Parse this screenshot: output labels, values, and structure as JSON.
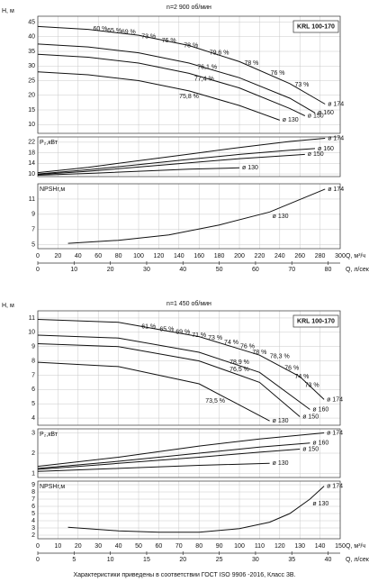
{
  "chart_data": [
    {
      "type": "pump-curves",
      "title": "n=2 900 об/мин",
      "model": "KRL 100-170",
      "xlabel": "Q, м³/ч",
      "xlim": [
        0,
        300
      ],
      "xticks": [
        0,
        20,
        40,
        60,
        80,
        100,
        120,
        140,
        160,
        180,
        200,
        220,
        240,
        260,
        280,
        300
      ],
      "x2label": "Q, л/сек",
      "x2lim": [
        0,
        83.333
      ],
      "x2ticks": [
        0,
        10,
        20,
        30,
        40,
        50,
        60,
        70,
        80
      ],
      "grid": true,
      "panels": [
        {
          "ylabel": "H, м",
          "ylim": [
            7,
            47
          ],
          "yticks": [
            10,
            15,
            20,
            25,
            30,
            35,
            40,
            45
          ],
          "series": [
            {
              "name": "ø 174",
              "color": "#111111",
              "x": [
                0,
                50,
                100,
                150,
                200,
                250,
                285
              ],
              "values": [
                43.5,
                42.5,
                40.5,
                37,
                31.5,
                24,
                17
              ]
            },
            {
              "name": "ø 160",
              "color": "#111111",
              "x": [
                0,
                50,
                100,
                150,
                200,
                250,
                275
              ],
              "values": [
                37.5,
                36.5,
                34.5,
                31,
                26,
                19,
                14
              ]
            },
            {
              "name": "ø 150",
              "color": "#111111",
              "x": [
                0,
                50,
                100,
                150,
                200,
                250,
                265
              ],
              "values": [
                34,
                33,
                31,
                27.5,
                22.5,
                15.5,
                13
              ]
            },
            {
              "name": "ø 130",
              "color": "#111111",
              "x": [
                0,
                50,
                100,
                150,
                200,
                240
              ],
              "values": [
                28,
                27,
                25,
                21.5,
                16.5,
                11.5
              ]
            }
          ],
          "annotations": [
            {
              "label": "60 %",
              "x": 62,
              "y": 42.6
            },
            {
              "label": "65 %",
              "x": 76,
              "y": 42.1
            },
            {
              "label": "69 %",
              "x": 90,
              "y": 41.5
            },
            {
              "label": "73 %",
              "x": 110,
              "y": 40
            },
            {
              "label": "76 %",
              "x": 130,
              "y": 38.6
            },
            {
              "label": "78 %",
              "x": 152,
              "y": 37
            },
            {
              "label": "79,6 %",
              "x": 180,
              "y": 34.5
            },
            {
              "label": "78 %",
              "x": 212,
              "y": 31
            },
            {
              "label": "76 %",
              "x": 238,
              "y": 27.5
            },
            {
              "label": "73 %",
              "x": 262,
              "y": 23.5
            },
            {
              "label": "76,1 %",
              "x": 168,
              "y": 29.5
            },
            {
              "label": "77,4 %",
              "x": 165,
              "y": 25.5
            },
            {
              "label": "75,8 %",
              "x": 150,
              "y": 19.5
            }
          ]
        },
        {
          "ylabel": "P₂,кВт",
          "ylim": [
            9,
            24
          ],
          "yticks": [
            10,
            14,
            18,
            22
          ],
          "series": [
            {
              "name": "ø 174",
              "color": "#111111",
              "x": [
                0,
                50,
                100,
                150,
                200,
                250,
                285
              ],
              "values": [
                10.5,
                12.5,
                15,
                17.5,
                20,
                22.3,
                23.5
              ]
            },
            {
              "name": "ø 160",
              "color": "#111111",
              "x": [
                0,
                50,
                100,
                150,
                200,
                250,
                275
              ],
              "values": [
                10,
                11.6,
                13.5,
                15.5,
                17.4,
                19,
                19.6
              ]
            },
            {
              "name": "ø 150",
              "color": "#111111",
              "x": [
                0,
                50,
                100,
                150,
                200,
                250,
                265
              ],
              "values": [
                9.8,
                11,
                12.6,
                14.2,
                15.8,
                17,
                17.4
              ]
            },
            {
              "name": "ø 130",
              "color": "#111111",
              "x": [
                0,
                50,
                100,
                150,
                200
              ],
              "values": [
                9.5,
                10.2,
                11,
                11.8,
                12.3
              ]
            }
          ]
        },
        {
          "ylabel": "NPSHr,м",
          "ylim": [
            4.5,
            13
          ],
          "yticks": [
            5,
            7,
            9,
            11
          ],
          "series": [
            {
              "name": "ø 174",
              "color": "#111111",
              "x": [
                30,
                80,
                130,
                180,
                230,
                285
              ],
              "values": [
                5.2,
                5.6,
                6.3,
                7.6,
                9.3,
                12.3
              ]
            }
          ],
          "curve_label": "ø 130"
        }
      ]
    },
    {
      "type": "pump-curves",
      "title": "n=1 450 об/мин",
      "model": "KRL 100-170",
      "xlabel": "Q, м³/ч",
      "xlim": [
        0,
        150
      ],
      "xticks": [
        0,
        10,
        20,
        30,
        40,
        50,
        60,
        70,
        80,
        90,
        100,
        110,
        120,
        130,
        140,
        150
      ],
      "x2label": "Q, л/сек",
      "x2lim": [
        0,
        41.667
      ],
      "x2ticks": [
        0,
        5,
        10,
        15,
        20,
        25,
        30,
        35,
        40
      ],
      "grid": true,
      "panels": [
        {
          "ylabel": "H, м",
          "ylim": [
            3.5,
            11.5
          ],
          "yticks": [
            4,
            5,
            6,
            7,
            8,
            9,
            10,
            11
          ],
          "series": [
            {
              "name": "ø 174",
              "color": "#111111",
              "x": [
                0,
                40,
                80,
                110,
                130,
                142
              ],
              "values": [
                10.9,
                10.7,
                9.7,
                8.4,
                6.9,
                5.3
              ]
            },
            {
              "name": "ø 160",
              "color": "#111111",
              "x": [
                0,
                40,
                80,
                110,
                135
              ],
              "values": [
                9.8,
                9.6,
                8.6,
                7.2,
                4.6
              ]
            },
            {
              "name": "ø 150",
              "color": "#111111",
              "x": [
                0,
                40,
                80,
                110,
                130
              ],
              "values": [
                9.2,
                9,
                8,
                6.5,
                4.1
              ]
            },
            {
              "name": "ø 130",
              "color": "#111111",
              "x": [
                0,
                40,
                80,
                115
              ],
              "values": [
                7.9,
                7.6,
                6.4,
                3.8
              ]
            }
          ],
          "annotations": [
            {
              "label": "61 %",
              "x": 55,
              "y": 10.4
            },
            {
              "label": "65 %",
              "x": 64,
              "y": 10.2
            },
            {
              "label": "69 %",
              "x": 72,
              "y": 10
            },
            {
              "label": "71 %",
              "x": 80,
              "y": 9.8
            },
            {
              "label": "73 %",
              "x": 88,
              "y": 9.6
            },
            {
              "label": "74 %",
              "x": 96,
              "y": 9.3
            },
            {
              "label": "76 %",
              "x": 104,
              "y": 9
            },
            {
              "label": "78 %",
              "x": 110,
              "y": 8.6
            },
            {
              "label": "78,3 %",
              "x": 120,
              "y": 8.3
            },
            {
              "label": "76 %",
              "x": 126,
              "y": 7.5
            },
            {
              "label": "74 %",
              "x": 131,
              "y": 6.9
            },
            {
              "label": "73 %",
              "x": 136,
              "y": 6.3
            },
            {
              "label": "76,5 %",
              "x": 100,
              "y": 7.4
            },
            {
              "label": "78,9 %",
              "x": 100,
              "y": 7.9
            },
            {
              "label": "73,5 %",
              "x": 88,
              "y": 5.2
            }
          ]
        },
        {
          "ylabel": "P₂,кВт",
          "ylim": [
            0.8,
            3.2
          ],
          "yticks": [
            1,
            2,
            3
          ],
          "series": [
            {
              "name": "ø 174",
              "color": "#111111",
              "x": [
                0,
                40,
                80,
                110,
                142
              ],
              "values": [
                1.35,
                1.8,
                2.35,
                2.7,
                3
              ]
            },
            {
              "name": "ø 160",
              "color": "#111111",
              "x": [
                0,
                40,
                80,
                110,
                135
              ],
              "values": [
                1.25,
                1.6,
                2,
                2.3,
                2.5
              ]
            },
            {
              "name": "ø 150",
              "color": "#111111",
              "x": [
                0,
                40,
                80,
                110,
                130
              ],
              "values": [
                1.2,
                1.5,
                1.8,
                2.05,
                2.2
              ]
            },
            {
              "name": "ø 130",
              "color": "#111111",
              "x": [
                0,
                40,
                80,
                115
              ],
              "values": [
                1.1,
                1.25,
                1.4,
                1.5
              ]
            }
          ]
        },
        {
          "ylabel": "NPSHr,м",
          "ylim": [
            1.5,
            9.5
          ],
          "yticks": [
            2,
            3,
            4,
            5,
            6,
            7,
            8,
            9
          ],
          "series": [
            {
              "name": "ø 174",
              "color": "#111111",
              "x": [
                15,
                40,
                60,
                80,
                100,
                115,
                125,
                135,
                142
              ],
              "values": [
                3.1,
                2.6,
                2.4,
                2.4,
                2.9,
                3.8,
                5,
                7,
                8.8
              ]
            }
          ],
          "curve_label": "ø 130"
        }
      ]
    }
  ],
  "footer": "Характеристики приведены в соответствии ГОСТ ISO 9906 -2016, Класс 3B."
}
